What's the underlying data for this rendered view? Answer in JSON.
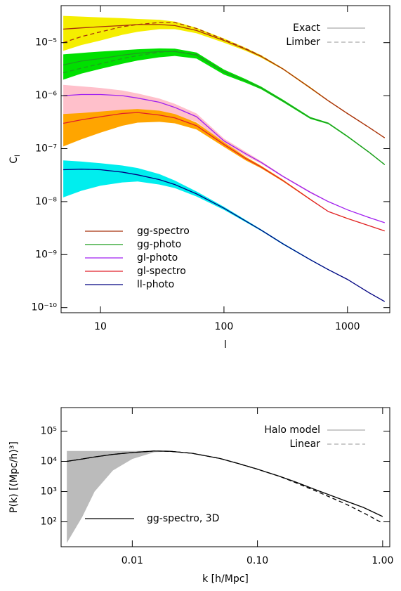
{
  "chart_data": [
    {
      "type": "line",
      "xlog": true,
      "ylog": true,
      "xlabel": "l",
      "ylabel": "C",
      "ylabel_sub": "l",
      "xlim": [
        4.8,
        2200
      ],
      "ylim": [
        8e-11,
        5e-05
      ],
      "xticks": [
        10,
        100,
        1000
      ],
      "yticks": [
        {
          "value": 1e-10,
          "label": "10⁻¹⁰"
        },
        {
          "value": 1e-09,
          "label": "10⁻⁹"
        },
        {
          "value": 1e-08,
          "label": "10⁻⁸"
        },
        {
          "value": 1e-07,
          "label": "10⁻⁷"
        },
        {
          "value": 1e-06,
          "label": "10⁻⁶"
        },
        {
          "value": 1e-05,
          "label": "10⁻⁵"
        }
      ],
      "x": [
        5,
        7,
        10,
        15,
        20,
        30,
        40,
        60,
        100,
        150,
        200,
        300,
        500,
        700,
        1000,
        1500,
        2000
      ],
      "legend": "lower left",
      "style_legend": [
        {
          "label": "Exact",
          "dash": false
        },
        {
          "label": "Limber",
          "dash": true
        }
      ],
      "series": [
        {
          "name": "gg-spectro",
          "color": "#a8300c",
          "band_color": "#f5ee00",
          "values": [
            1.8e-05,
            1.9e-05,
            2e-05,
            2.1e-05,
            2.2e-05,
            2.2e-05,
            2.1e-05,
            1.7e-05,
            1.1e-05,
            7.5e-06,
            5.5e-06,
            3.2e-06,
            1.4e-06,
            8e-07,
            4.6e-07,
            2.5e-07,
            1.6e-07
          ],
          "dashed_values": [
            1e-05,
            1.3e-05,
            1.6e-05,
            2e-05,
            2.2e-05,
            2.4e-05,
            2.4e-05,
            1.85e-05,
            1.15e-05,
            7.7e-06,
            5.6e-06,
            3.2e-06,
            1.4e-06,
            8e-07,
            4.6e-07,
            2.5e-07,
            1.6e-07
          ],
          "band_low": [
            7e-06,
            9e-06,
            1.1e-05,
            1.4e-05,
            1.6e-05,
            1.8e-05,
            1.8e-05,
            1.5e-05,
            1e-05,
            7e-06,
            5.2e-06,
            3.1e-06,
            1.35e-06,
            7.8e-07,
            4.5e-07,
            2.45e-07,
            1.57e-07
          ],
          "band_high": [
            3.2e-05,
            3.1e-05,
            3e-05,
            2.9e-05,
            2.8e-05,
            2.7e-05,
            2.5e-05,
            1.9e-05,
            1.2e-05,
            8e-06,
            5.8e-06,
            3.3e-06,
            1.45e-06,
            8.2e-07,
            4.7e-07,
            2.55e-07,
            1.63e-07
          ]
        },
        {
          "name": "gg-photo",
          "color": "#1f9e1f",
          "band_color": "#00e000",
          "values": [
            3.8e-06,
            4.5e-06,
            5e-06,
            5.8e-06,
            6.3e-06,
            6.8e-06,
            6.8e-06,
            5.8e-06,
            2.8e-06,
            1.9e-06,
            1.4e-06,
            8e-07,
            3.8e-07,
            3e-07,
            1.7e-07,
            8.5e-08,
            5e-08
          ],
          "dashed_values": [
            2.7e-06,
            3.3e-06,
            4e-06,
            5e-06,
            5.7e-06,
            6.6e-06,
            6.9e-06,
            6e-06,
            2.85e-06,
            1.9e-06,
            1.4e-06,
            8e-07,
            3.8e-07,
            3e-07,
            1.7e-07,
            8.5e-08,
            5e-08
          ],
          "band_low": [
            2e-06,
            2.6e-06,
            3.2e-06,
            4e-06,
            4.6e-06,
            5.3e-06,
            5.6e-06,
            5e-06,
            2.5e-06,
            1.75e-06,
            1.32e-06,
            7.6e-07,
            3.65e-07,
            2.9e-07,
            1.65e-07,
            8.3e-08,
            4.9e-08
          ],
          "band_high": [
            6e-06,
            6.4e-06,
            6.8e-06,
            7.2e-06,
            7.5e-06,
            7.8e-06,
            7.7e-06,
            6.5e-06,
            3.1e-06,
            2.05e-06,
            1.48e-06,
            8.4e-07,
            3.95e-07,
            3.1e-07,
            1.75e-07,
            8.7e-08,
            5.1e-08
          ]
        },
        {
          "name": "gl-photo",
          "color": "#a020f0",
          "band_color": "#ffc0cb",
          "values": [
            1e-06,
            1.05e-06,
            1.05e-06,
            1e-06,
            9e-07,
            7.5e-07,
            6e-07,
            4e-07,
            1.4e-07,
            8e-08,
            5.5e-08,
            3e-08,
            1.5e-08,
            1e-08,
            7e-09,
            5e-09,
            4e-09
          ],
          "band_low": [
            3.5e-07,
            4e-07,
            4.5e-07,
            5e-07,
            5e-07,
            4.8e-07,
            4.2e-07,
            3.2e-07,
            1.25e-07,
            7.3e-08,
            5.2e-08,
            2.9e-08,
            1.45e-08,
            9.8e-09,
            6.9e-09,
            4.95e-09,
            3.95e-09
          ],
          "band_high": [
            1.6e-06,
            1.5e-06,
            1.4e-06,
            1.25e-06,
            1.1e-06,
            8.8e-07,
            7e-07,
            4.6e-07,
            1.55e-07,
            8.7e-08,
            5.8e-08,
            3.1e-08,
            1.55e-08,
            1.02e-08,
            7.1e-09,
            5.05e-09,
            4.05e-09
          ]
        },
        {
          "name": "gl-spectro",
          "color": "#e0202a",
          "band_color": "#ffa500",
          "values": [
            3e-07,
            3.5e-07,
            4e-07,
            4.6e-07,
            4.8e-07,
            4.3e-07,
            3.8e-07,
            2.7e-07,
            1.2e-07,
            6.5e-08,
            4.5e-08,
            2.5e-08,
            1.1e-08,
            6.5e-09,
            4.8e-09,
            3.5e-09,
            2.8e-09
          ],
          "band_low": [
            1.1e-07,
            1.5e-07,
            2e-07,
            2.7e-07,
            3.1e-07,
            3.2e-07,
            3e-07,
            2.3e-07,
            1.08e-07,
            6e-08,
            4.25e-08,
            2.4e-08,
            1.07e-08,
            6.4e-09,
            4.7e-09,
            3.45e-09,
            2.75e-09
          ],
          "band_high": [
            4.5e-07,
            4.7e-07,
            5e-07,
            5.4e-07,
            5.6e-07,
            5.2e-07,
            4.5e-07,
            3.1e-07,
            1.32e-07,
            7e-08,
            4.75e-08,
            2.6e-08,
            1.13e-08,
            6.6e-09,
            4.9e-09,
            3.55e-09,
            2.85e-09
          ]
        },
        {
          "name": "ll-photo",
          "color": "#000080",
          "band_color": "#00eeee",
          "values": [
            4e-08,
            4.1e-08,
            4e-08,
            3.6e-08,
            3.2e-08,
            2.6e-08,
            2.1e-08,
            1.4e-08,
            7.5e-09,
            4.3e-09,
            2.9e-09,
            1.6e-09,
            8e-10,
            5.2e-10,
            3.4e-10,
            1.9e-10,
            1.3e-10
          ],
          "band_low": [
            1.2e-08,
            1.6e-08,
            2e-08,
            2.3e-08,
            2.4e-08,
            2.1e-08,
            1.8e-08,
            1.25e-08,
            7e-09,
            4.1e-09,
            2.8e-09,
            1.55e-09,
            7.8e-10,
            5.1e-10,
            3.35e-10,
            1.88e-10,
            1.29e-10
          ],
          "band_high": [
            6e-08,
            5.7e-08,
            5.3e-08,
            4.8e-08,
            4.3e-08,
            3.3e-08,
            2.5e-08,
            1.55e-08,
            8e-09,
            4.5e-09,
            3e-09,
            1.65e-09,
            8.2e-10,
            5.3e-10,
            3.45e-10,
            1.92e-10,
            1.31e-10
          ]
        }
      ]
    },
    {
      "type": "line",
      "xlog": true,
      "ylog": true,
      "xlabel": "k   [h/Mpc]",
      "ylabel": "P(k)   [(Mpc/h)³]",
      "xlim": [
        0.0027,
        1.14
      ],
      "ylim": [
        15,
        600000.0
      ],
      "xticks": [
        0.01,
        {
          "value": 0.1,
          "label": "0.10"
        },
        {
          "value": 1,
          "label": "1.00"
        }
      ],
      "yticks": [
        {
          "value": 100,
          "label": "10²"
        },
        {
          "value": 1000,
          "label": "10³"
        },
        {
          "value": 10000,
          "label": "10⁴"
        },
        {
          "value": 100000,
          "label": "10⁵"
        }
      ],
      "x": [
        0.003,
        0.004,
        0.005,
        0.007,
        0.01,
        0.015,
        0.02,
        0.03,
        0.05,
        0.07,
        0.1,
        0.15,
        0.2,
        0.3,
        0.5,
        0.7,
        1.0
      ],
      "legend": "lower left",
      "style_legend": [
        {
          "label": "Halo model",
          "dash": false
        },
        {
          "label": "Linear",
          "dash": true
        }
      ],
      "series": [
        {
          "name": "gg-spectro, 3D",
          "color": "#000000",
          "band_color": "#bbbbbb",
          "values": [
            10000,
            12000,
            14000,
            17000,
            19500,
            22000,
            21500,
            18500,
            12500,
            8500,
            5500,
            3200,
            2100,
            1100,
            500,
            300,
            150
          ],
          "dashed_values": [
            10000,
            12000,
            14000,
            17000,
            19500,
            22000,
            21500,
            18500,
            12500,
            8500,
            5500,
            3200,
            2000,
            1000,
            400,
            200,
            90
          ],
          "band_low": [
            20,
            150,
            1000,
            5000,
            12000,
            20000,
            21500,
            null,
            null,
            null,
            null,
            null,
            null,
            null,
            null,
            null,
            null
          ],
          "band_high": [
            22000,
            22000,
            22000,
            22000,
            22000,
            22500,
            21500,
            null,
            null,
            null,
            null,
            null,
            null,
            null,
            null,
            null,
            null
          ]
        }
      ]
    }
  ]
}
